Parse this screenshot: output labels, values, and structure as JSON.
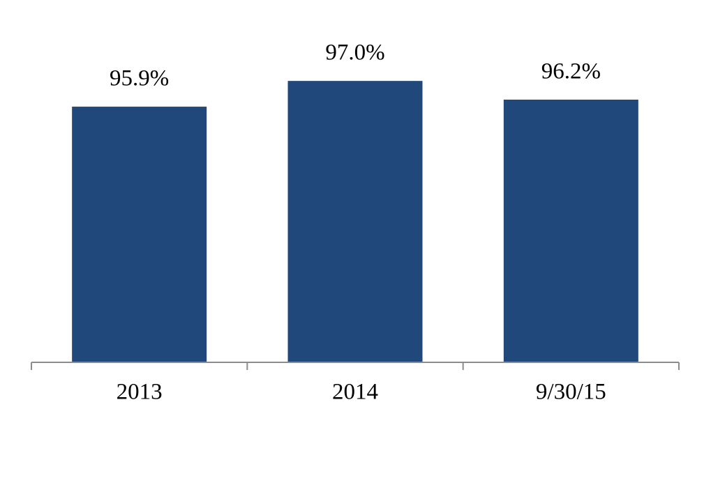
{
  "chart_data": {
    "type": "bar",
    "categories": [
      "2013",
      "2014",
      "9/30/15"
    ],
    "values": [
      95.9,
      97.0,
      96.2
    ],
    "value_labels": [
      "95.9%",
      "97.0%",
      "96.2%"
    ],
    "color": "#21487a",
    "ylim": [
      85,
      99
    ]
  }
}
